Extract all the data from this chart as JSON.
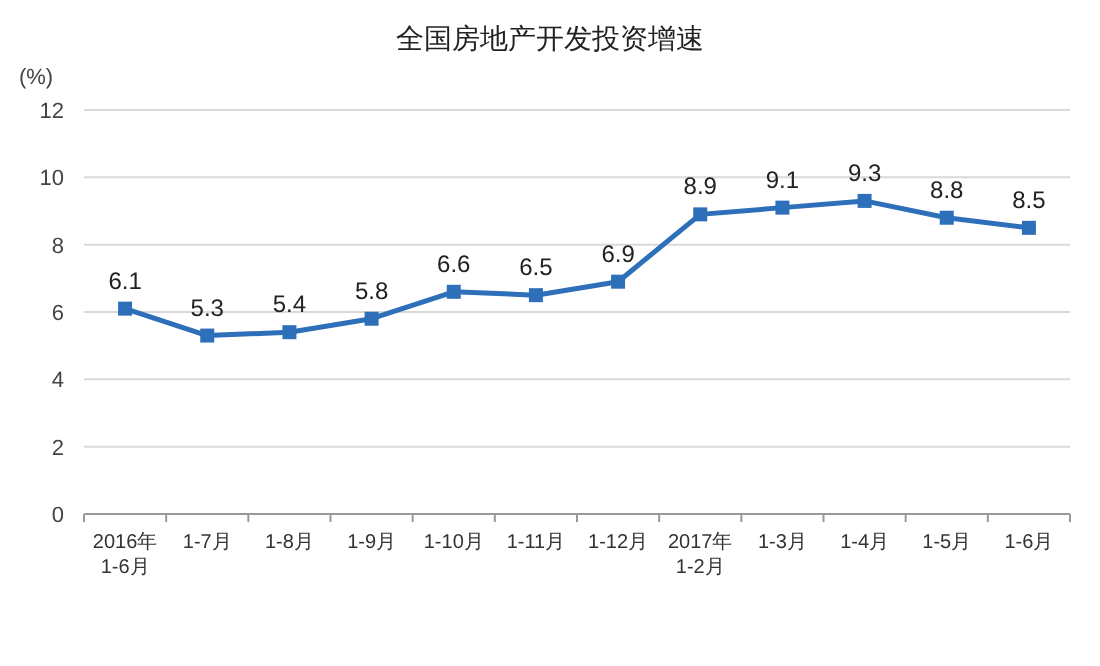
{
  "chart_data": {
    "type": "line",
    "title": "全国房地产开发投资增速",
    "ylabel": "(%)",
    "categories": [
      "2016年\n1-6月",
      "1-7月",
      "1-8月",
      "1-9月",
      "1-10月",
      "1-11月",
      "1-12月",
      "2017年\n1-2月",
      "1-3月",
      "1-4月",
      "1-5月",
      "1-6月"
    ],
    "series": [
      {
        "color": "#2e6fba",
        "values": [
          6.1,
          5.3,
          5.4,
          5.8,
          6.6,
          6.5,
          6.9,
          8.9,
          9.1,
          9.3,
          8.8,
          8.5
        ]
      }
    ],
    "ylim": [
      0,
      12
    ],
    "yticks": [
      0,
      2,
      4,
      6,
      8,
      10,
      12
    ],
    "grid": "y",
    "marker": "square",
    "line_style": "solid",
    "data_labels": true
  }
}
